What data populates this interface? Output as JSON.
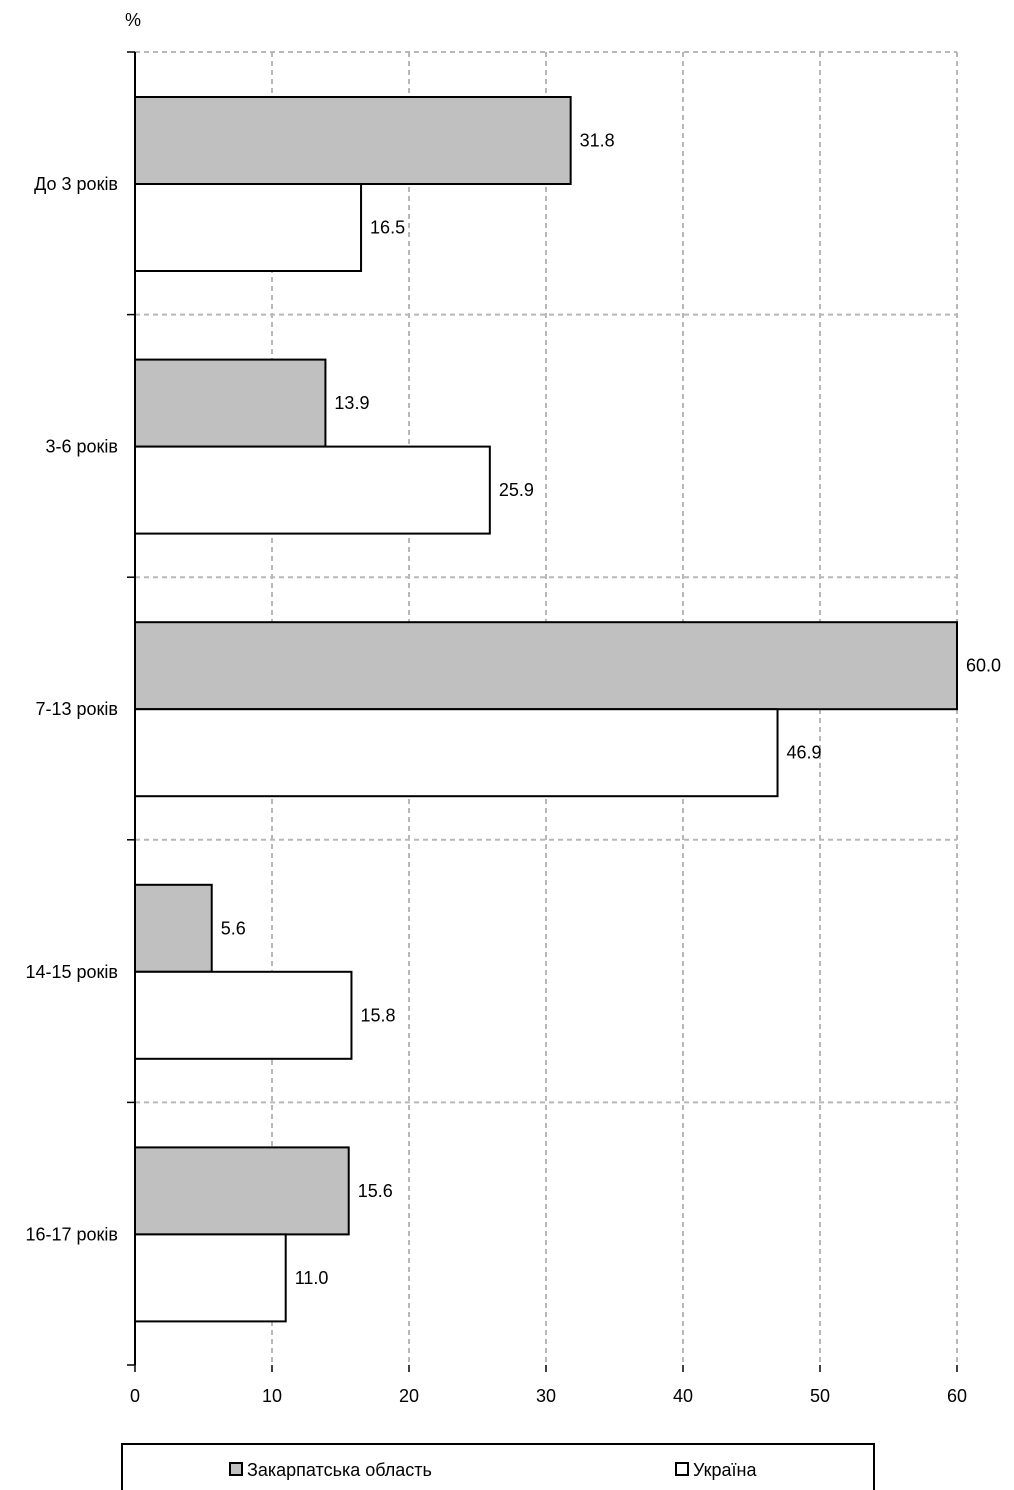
{
  "chart_data": {
    "type": "bar",
    "orientation": "horizontal",
    "title": "",
    "xlabel": "",
    "ylabel": "",
    "unit_label": "%",
    "categories": [
      "До 3 років",
      "3-6 років",
      "7-13 років",
      "14-15 років",
      "16-17 років"
    ],
    "series": [
      {
        "name": "Закарпатська область",
        "values": [
          31.8,
          13.9,
          60.0,
          5.6,
          15.6
        ],
        "color": "#c0c0c0"
      },
      {
        "name": "Україна",
        "values": [
          16.5,
          25.9,
          46.9,
          15.8,
          11.0
        ],
        "color": "#ffffff"
      }
    ],
    "value_labels": [
      [
        "31.8",
        "13.9",
        "60.0",
        "5.6",
        "15.6"
      ],
      [
        "16.5",
        "25.9",
        "46.9",
        "15.8",
        "11.0"
      ]
    ],
    "xlim": [
      0,
      60
    ],
    "x_ticks": [
      0,
      10,
      20,
      30,
      40,
      50,
      60
    ],
    "grid": true,
    "legend_position": "bottom"
  }
}
